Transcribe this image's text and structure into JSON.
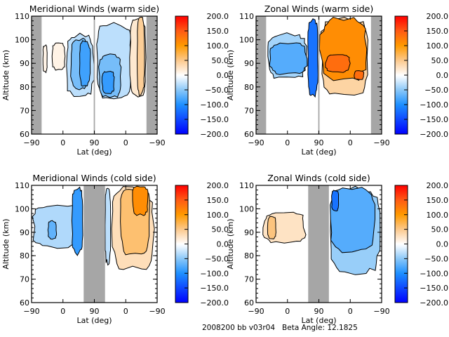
{
  "footer": {
    "text": "2008200 bb v03r04   Beta Angle: 12.1825"
  },
  "colorscale": {
    "min": -200,
    "max": 200,
    "stops": [
      {
        "v": -200,
        "color": "#0000ff"
      },
      {
        "v": -100,
        "color": "#1e90ff"
      },
      {
        "v": -50,
        "color": "#8cc8f8"
      },
      {
        "v": -10,
        "color": "#ecf6ff"
      },
      {
        "v": 0,
        "color": "#ffffff"
      },
      {
        "v": 10,
        "color": "#fff3e6"
      },
      {
        "v": 50,
        "color": "#fcc98c"
      },
      {
        "v": 100,
        "color": "#ff9a00"
      },
      {
        "v": 150,
        "color": "#ff5a14"
      },
      {
        "v": 200,
        "color": "#ff0000"
      }
    ],
    "tick_labels": [
      "200.0",
      "150.0",
      "100.0",
      "50.0",
      "0.0",
      "-50.0",
      "-100.0",
      "-150.0",
      "-200.0"
    ]
  },
  "chart_data": [
    {
      "type": "heatmap",
      "title": "Meridional Winds (warm side)",
      "xlabel": "Lat (deg)",
      "ylabel": "Altitude (km)",
      "xtick_labels": [
        "-90",
        "0",
        "90",
        "0",
        "-90"
      ],
      "ytick_labels": [
        "60",
        "70",
        "80",
        "90",
        "100",
        "110"
      ],
      "ylim": [
        60,
        110
      ],
      "xrange_segments": [
        "-90..90 (ascending)",
        "90..-90 (descending)"
      ],
      "colorbar_range": [
        -200,
        200
      ],
      "nodata_bands": [
        [
          0.0,
          0.08
        ],
        [
          0.495,
          0.505
        ],
        [
          0.915,
          1.0
        ]
      ],
      "regions": [
        {
          "x": [
            0.09,
            0.125
          ],
          "y": [
            86,
            98
          ],
          "value": 10
        },
        {
          "x": [
            0.16,
            0.27
          ],
          "y": [
            87,
            99
          ],
          "value": 10
        },
        {
          "x": [
            0.27,
            0.5
          ],
          "y": [
            75,
            103
          ],
          "value": -30
        },
        {
          "x": [
            0.31,
            0.45
          ],
          "y": [
            78,
            101
          ],
          "value": -60
        },
        {
          "x": [
            0.38,
            0.47
          ],
          "y": [
            80,
            100
          ],
          "value": -85
        },
        {
          "x": [
            0.51,
            0.8
          ],
          "y": [
            74,
            108
          ],
          "value": -30
        },
        {
          "x": [
            0.53,
            0.72
          ],
          "y": [
            75,
            94
          ],
          "value": -60
        },
        {
          "x": [
            0.56,
            0.66
          ],
          "y": [
            77,
            87
          ],
          "value": -90
        },
        {
          "x": [
            0.78,
            0.915
          ],
          "y": [
            75,
            110
          ],
          "value": 20
        },
        {
          "x": [
            0.84,
            0.9
          ],
          "y": [
            76,
            110
          ],
          "value": 45
        }
      ]
    },
    {
      "type": "heatmap",
      "title": "Zonal Winds (warm side)",
      "xlabel": "Lat (deg)",
      "ylabel": "Altitude (km)",
      "xtick_labels": [
        "-90",
        "0",
        "90",
        "0",
        "-90"
      ],
      "ytick_labels": [
        "60",
        "70",
        "80",
        "90",
        "100",
        "110"
      ],
      "ylim": [
        60,
        110
      ],
      "colorbar_range": [
        -200,
        200
      ],
      "nodata_bands": [
        [
          0.0,
          0.08
        ],
        [
          0.495,
          0.505
        ],
        [
          0.915,
          1.0
        ]
      ],
      "regions": [
        {
          "x": [
            0.08,
            0.41
          ],
          "y": [
            83,
            103
          ],
          "value": -40
        },
        {
          "x": [
            0.1,
            0.41
          ],
          "y": [
            85,
            99
          ],
          "value": -75
        },
        {
          "x": [
            0.41,
            0.495
          ],
          "y": [
            75,
            110
          ],
          "value": -120
        },
        {
          "x": [
            0.505,
            0.9
          ],
          "y": [
            75,
            110
          ],
          "value": 40
        },
        {
          "x": [
            0.505,
            0.89
          ],
          "y": [
            82,
            110
          ],
          "value": 110
        },
        {
          "x": [
            0.55,
            0.75
          ],
          "y": [
            86,
            94
          ],
          "value": 135
        },
        {
          "x": [
            0.78,
            0.86
          ],
          "y": [
            83,
            87
          ],
          "value": 135
        }
      ]
    },
    {
      "type": "heatmap",
      "title": "Meridional Winds (cold side)",
      "xlabel": "Lat (deg)",
      "ylabel": "Altitude (km)",
      "xtick_labels": [
        "-90",
        "0",
        "90",
        "0",
        "-90"
      ],
      "ytick_labels": [
        "60",
        "70",
        "80",
        "90",
        "100",
        "110"
      ],
      "ylim": [
        60,
        110
      ],
      "colorbar_range": [
        -200,
        200
      ],
      "nodata_bands": [
        [
          0.415,
          0.585
        ]
      ],
      "regions": [
        {
          "x": [
            0.0,
            0.41
          ],
          "y": [
            83,
            102
          ],
          "value": -35
        },
        {
          "x": [
            0.13,
            0.2
          ],
          "y": [
            87,
            95
          ],
          "value": -70
        },
        {
          "x": [
            0.32,
            0.41
          ],
          "y": [
            80,
            110
          ],
          "value": -90
        },
        {
          "x": [
            0.585,
            0.63
          ],
          "y": [
            76,
            110
          ],
          "value": -30
        },
        {
          "x": [
            0.63,
            0.98
          ],
          "y": [
            73,
            110
          ],
          "value": 30
        },
        {
          "x": [
            0.7,
            0.95
          ],
          "y": [
            79,
            110
          ],
          "value": 60
        },
        {
          "x": [
            0.8,
            0.93
          ],
          "y": [
            97,
            110
          ],
          "value": 110
        }
      ]
    },
    {
      "type": "heatmap",
      "title": "Zonal Winds (cold side)",
      "xlabel": "Lat (deg)",
      "ylabel": "Altitude (km)",
      "xtick_labels": [
        "-90",
        "0",
        "90",
        "0",
        "-90"
      ],
      "ytick_labels": [
        "60",
        "70",
        "80",
        "90",
        "100",
        "110"
      ],
      "ylim": [
        60,
        110
      ],
      "colorbar_range": [
        -200,
        200
      ],
      "nodata_bands": [
        [
          0.415,
          0.58
        ]
      ],
      "regions": [
        {
          "x": [
            0.05,
            0.4
          ],
          "y": [
            85,
            99
          ],
          "value": 25
        },
        {
          "x": [
            0.09,
            0.16
          ],
          "y": [
            87,
            97
          ],
          "value": 55
        },
        {
          "x": [
            0.58,
            1.0
          ],
          "y": [
            71,
            110
          ],
          "value": -45
        },
        {
          "x": [
            0.58,
            0.95
          ],
          "y": [
            81,
            110
          ],
          "value": -75
        },
        {
          "x": [
            0.6,
            0.66
          ],
          "y": [
            99,
            108
          ],
          "value": -120
        }
      ]
    }
  ]
}
